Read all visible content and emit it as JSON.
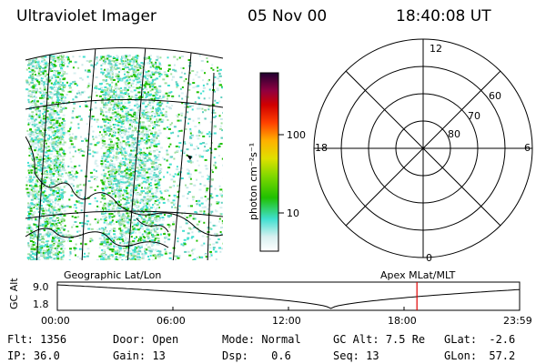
{
  "header": {
    "instrument": "Ultraviolet Imager",
    "date": "05 Nov 00",
    "time": "18:40:08 UT"
  },
  "colorbar": {
    "unit_label": "photon cm⁻²s⁻¹",
    "ticks": [
      "100",
      "10"
    ],
    "colors": [
      "#ffffff",
      "#d8f0f0",
      "#40e0d0",
      "#20c000",
      "#c0e000",
      "#ffe000",
      "#ffa000",
      "#ff4000",
      "#e00000",
      "#a00040",
      "#600060",
      "#200030"
    ]
  },
  "polar_plot": {
    "mlt_labels": {
      "top": "12",
      "left": "18",
      "right": "6",
      "bottom": "0"
    },
    "lat_labels": [
      "60",
      "70",
      "80"
    ]
  },
  "timeline": {
    "left_title": "Geographic Lat/Lon",
    "right_title": "Apex MLat/MLT",
    "axis_label": "GC Alt",
    "y_ticks": [
      "9.0",
      "1.8"
    ],
    "x_ticks": [
      "00:00",
      "06:00",
      "12:00",
      "18:00",
      "23:59"
    ],
    "marker_time_hours": 18.67,
    "marker_color": "#e00000"
  },
  "status": {
    "flt_label": "Flt:",
    "flt_value": "1356",
    "ip_label": "IP:",
    "ip_value": "36.0",
    "door_label": "Door:",
    "door_value": "Open",
    "gain_label": "Gain:",
    "gain_value": "13",
    "mode_label": "Mode:",
    "mode_value": "Normal",
    "dsp_label": "Dsp:",
    "dsp_value": "0.6",
    "gcalt_label": "GC Alt:",
    "gcalt_value": "7.5 Re",
    "seq_label": "Seq:",
    "seq_value": "13",
    "glat_label": "GLat:",
    "glat_value": "-2.6",
    "glon_label": "GLon:",
    "glon_value": "57.2"
  }
}
